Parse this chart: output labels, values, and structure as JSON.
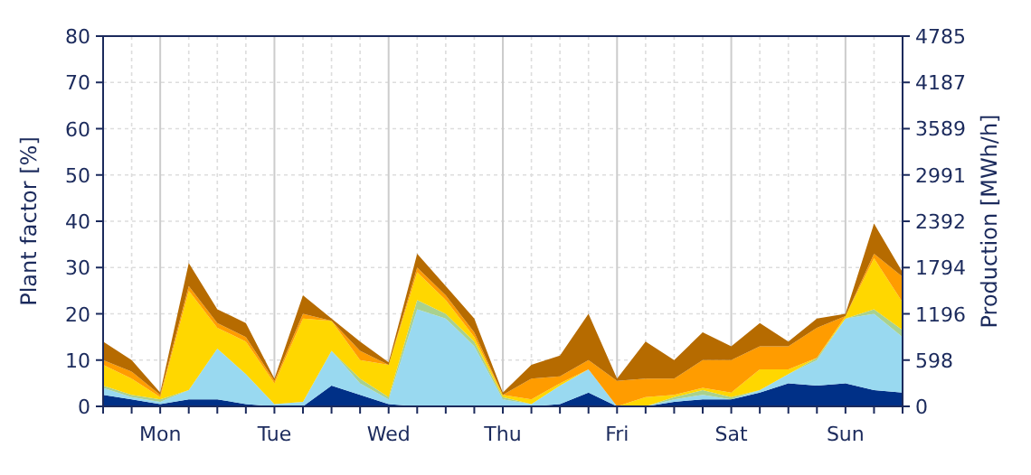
{
  "chart_data": {
    "type": "area",
    "stacked": true,
    "ylabel": "Plant factor [%]",
    "y2label": "Production [MWh/h]",
    "categories": [
      null,
      null,
      "Mon",
      null,
      null,
      null,
      "Tue",
      null,
      null,
      null,
      "Wed",
      null,
      null,
      null,
      "Thu",
      null,
      null,
      null,
      "Fri",
      null,
      null,
      null,
      "Sat",
      null,
      null,
      null,
      "Sun",
      null,
      null
    ],
    "series": [
      {
        "color": "#003087",
        "values": [
          2.5,
          1.5,
          0.5,
          1.5,
          1.5,
          0.5,
          0,
          0,
          4.5,
          2.5,
          0.5,
          0,
          0,
          0,
          0,
          0,
          0.5,
          3,
          0,
          0,
          1,
          1.5,
          1.5,
          3,
          5,
          4.5,
          5,
          3.5,
          3
        ]
      },
      {
        "color": "#99d9f0",
        "values": [
          1.5,
          0.5,
          0.5,
          2,
          11,
          6.5,
          0.5,
          1,
          7.5,
          2.5,
          1,
          21,
          19,
          13,
          1.5,
          0.5,
          4,
          5,
          0,
          0,
          0.5,
          1,
          0,
          0.5,
          2,
          5.5,
          14,
          16.5,
          12
        ]
      },
      {
        "color": "#a9d18e",
        "values": [
          0.5,
          0.5,
          0.5,
          0,
          0,
          0,
          0,
          0,
          0,
          1,
          0.5,
          2,
          1,
          1,
          0.5,
          0,
          0,
          0,
          0,
          0,
          0.5,
          1,
          0.5,
          0,
          0,
          0.5,
          0,
          1,
          1.5
        ]
      },
      {
        "color": "#ffd700",
        "values": [
          4.5,
          3.5,
          0.5,
          21.5,
          4.5,
          7,
          4.5,
          18,
          6.5,
          4,
          7,
          6,
          3,
          1,
          0.5,
          1,
          0.5,
          0,
          0,
          2,
          0.5,
          0.5,
          1,
          4.5,
          1,
          0,
          0.5,
          11,
          6
        ]
      },
      {
        "color": "#ff9c00",
        "values": [
          1,
          1.5,
          0.5,
          1,
          1,
          1,
          0.5,
          1,
          0,
          2,
          0,
          1,
          1,
          1,
          0,
          4.5,
          1.5,
          2,
          5.5,
          4,
          3.5,
          6,
          7,
          5,
          5,
          6.5,
          0,
          1,
          5.5
        ]
      },
      {
        "color": "#b66b00",
        "values": [
          4,
          2.5,
          0.5,
          5,
          3,
          3,
          0.5,
          4,
          0.5,
          2,
          0.5,
          3,
          2,
          3,
          0.5,
          3,
          4.5,
          10,
          0.5,
          8,
          4,
          6,
          3,
          5,
          1,
          2,
          0.5,
          6.5,
          1
        ]
      }
    ],
    "ylim": [
      0,
      80
    ],
    "yticks": [
      0,
      10,
      20,
      30,
      40,
      50,
      60,
      70,
      80
    ],
    "y2lim": [
      0,
      4785
    ],
    "y2ticks": [
      0,
      598,
      1196,
      1794,
      2392,
      2991,
      3589,
      4187,
      4785
    ],
    "grid": true
  }
}
